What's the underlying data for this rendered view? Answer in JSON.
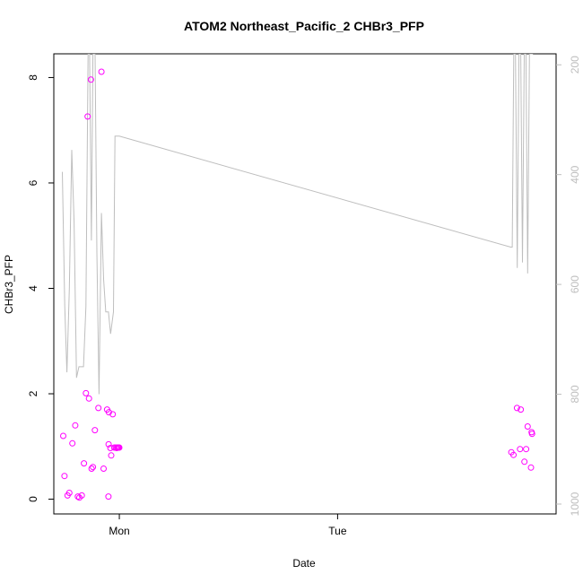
{
  "chart_data": {
    "type": "scatter",
    "title": "ATOM2 Northeast_Pacific_2 CHBr3_PFP",
    "xlabel": "Date",
    "ylabel": "CHBr3_PFP",
    "x_ticks": [
      "Mon",
      "Tue"
    ],
    "y_ticks": [
      "0",
      "2",
      "4",
      "6",
      "8"
    ],
    "y_right_ticks": [
      "200",
      "400",
      "600",
      "800",
      "1000"
    ],
    "ylim": [
      -0.28,
      8.45
    ],
    "y_right_lim": [
      180,
      1018
    ],
    "y_right_reversed": true,
    "x_axis_note": "x values are hours relative to Mon 00:00",
    "xlim": [
      -3.0,
      20.0
    ],
    "colors": {
      "points": "#ff00ff",
      "line": "#bebebe",
      "axes": "#000000",
      "right_axis": "#bebebe"
    },
    "series": [
      {
        "kind": "points",
        "x": [
          -2.57,
          -2.51,
          -2.37,
          -2.29,
          -2.15,
          -2.02,
          -1.9,
          -1.83,
          -1.72,
          -1.62,
          -1.53,
          -1.45,
          -1.39,
          -1.3,
          -1.27,
          -1.21,
          -1.12,
          -0.96,
          -0.82,
          -0.72,
          -0.56,
          -0.5,
          -0.49,
          -0.48,
          -0.41,
          -0.37,
          -0.3,
          -0.23,
          -0.16,
          -0.12,
          -0.08,
          -0.06,
          -0.04,
          0.0
        ],
        "y": [
          1.2,
          0.44,
          0.07,
          0.12,
          1.06,
          1.4,
          0.05,
          0.03,
          0.07,
          0.68,
          2.01,
          7.26,
          1.91,
          7.96,
          0.58,
          0.61,
          1.31,
          1.73,
          8.11,
          0.58,
          1.7,
          0.05,
          1.04,
          1.65,
          0.97,
          0.83,
          1.61,
          0.98,
          0.98,
          0.97,
          0.98,
          0.98,
          0.98,
          0.98
        ]
      },
      {
        "kind": "points",
        "x": [
          17.95,
          18.05,
          18.21,
          18.35,
          18.38,
          18.55,
          18.63,
          18.7,
          18.85,
          18.88,
          18.9
        ],
        "y": [
          0.89,
          0.84,
          1.73,
          0.95,
          1.7,
          0.71,
          0.95,
          1.38,
          0.6,
          1.27,
          1.24
        ]
      },
      {
        "kind": "line",
        "axis": "right",
        "x": [
          -2.61,
          -2.5,
          -2.4,
          -2.29,
          -2.18,
          -2.07,
          -1.96,
          -1.85,
          -1.75,
          -1.64,
          -1.53,
          -1.43,
          -1.36,
          -1.28,
          -1.21,
          -1.11,
          -1.03,
          -0.93,
          -0.82,
          -0.72,
          -0.62,
          -0.5,
          -0.4,
          -0.27,
          -0.2,
          -0.16,
          -0.11,
          -0.07,
          -0.05,
          0.0,
          17.92,
          17.99,
          18.06,
          18.14,
          18.22,
          18.3,
          18.38,
          18.46,
          18.54,
          18.62,
          18.7,
          18.78,
          18.86,
          18.94
        ],
        "y": [
          395,
          640,
          760,
          608,
          355,
          486,
          770,
          750,
          750,
          750,
          640,
          180,
          180,
          520,
          180,
          180,
          540,
          800,
          470,
          590,
          650,
          650,
          690,
          650,
          330,
          330,
          330,
          330,
          330,
          330,
          532,
          532,
          180,
          180,
          570,
          180,
          180,
          560,
          180,
          180,
          580,
          180,
          180,
          180
        ]
      }
    ]
  }
}
